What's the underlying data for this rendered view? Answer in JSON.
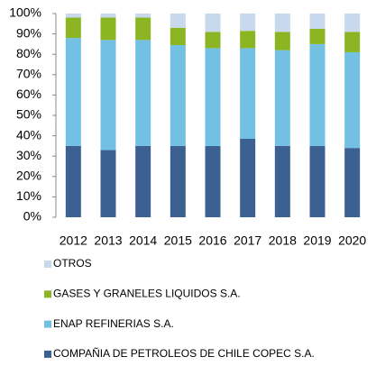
{
  "chart_data": {
    "type": "stacked_bar",
    "categories": [
      "2012",
      "2013",
      "2014",
      "2015",
      "2016",
      "2017",
      "2018",
      "2019",
      "2020"
    ],
    "series": [
      {
        "name": "COMPAÑIA DE PETROLEOS DE CHILE COPEC S.A.",
        "color": "#3b6091",
        "values": [
          35,
          33,
          35,
          35,
          35,
          38.5,
          35,
          35,
          34
        ]
      },
      {
        "name": "ENAP REFINERIAS S.A.",
        "color": "#72c0e4",
        "values": [
          53,
          54,
          52,
          49.5,
          48,
          44.5,
          47,
          50,
          47
        ]
      },
      {
        "name": "GASES Y GRANELES LIQUIDOS S.A.",
        "color": "#8cb523",
        "values": [
          10,
          11,
          11,
          8.5,
          8,
          8.5,
          9,
          7.5,
          10
        ]
      },
      {
        "name": "OTROS",
        "color": "#c8d9ee",
        "values": [
          2,
          2,
          2,
          7,
          9,
          8.5,
          9,
          7.5,
          9
        ]
      }
    ],
    "ylim": [
      0,
      100
    ],
    "yticks": [
      {
        "value": 0,
        "label": "0%"
      },
      {
        "value": 10,
        "label": "10%"
      },
      {
        "value": 20,
        "label": "20%"
      },
      {
        "value": 30,
        "label": "30%"
      },
      {
        "value": 40,
        "label": "40%"
      },
      {
        "value": 50,
        "label": "50%"
      },
      {
        "value": 60,
        "label": "60%"
      },
      {
        "value": 70,
        "label": "70%"
      },
      {
        "value": 80,
        "label": "80%"
      },
      {
        "value": 90,
        "label": "90%"
      },
      {
        "value": 100,
        "label": "100%"
      }
    ],
    "grid": false
  }
}
